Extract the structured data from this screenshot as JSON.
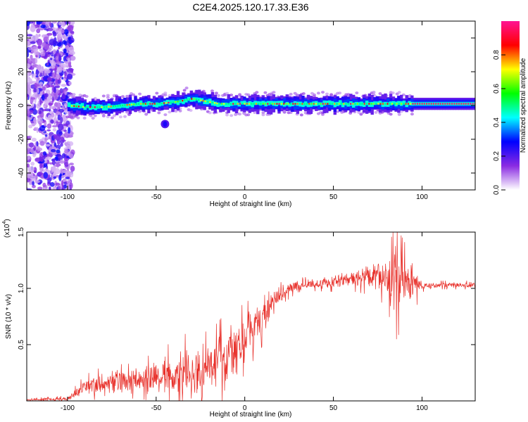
{
  "title": "C2E4.2025.120.17.33.E36",
  "chart_data": [
    {
      "type": "heatmap",
      "xlabel": "Height of straight line (km)",
      "ylabel": "Frequency (Hz)",
      "xlim": [
        -123,
        130
      ],
      "ylim": [
        -50,
        50
      ],
      "xticks": [
        -100,
        -50,
        0,
        50,
        100
      ],
      "yticks": [
        -40,
        -20,
        0,
        20,
        40
      ],
      "colorbar": {
        "label": "Normalized spectral amplitude",
        "range": [
          0.0,
          1.0
        ],
        "ticks": [
          0.0,
          0.2,
          0.4,
          0.6,
          0.8
        ],
        "colors": [
          "#ffffff",
          "#8a2be2",
          "#0000ff",
          "#00ffff",
          "#00ff00",
          "#ffff00",
          "#ff0000",
          "#ff1493"
        ]
      },
      "ridge": {
        "x": [
          -100,
          -90,
          -80,
          -70,
          -60,
          -50,
          -40,
          -30,
          -25,
          -20,
          -15,
          -10,
          0,
          10,
          20,
          40,
          60,
          80,
          95,
          130
        ],
        "freq": [
          0,
          -1,
          -1,
          0,
          1,
          1,
          2,
          4,
          3,
          2,
          1,
          1,
          1,
          1,
          1,
          1,
          1,
          1,
          1,
          1
        ]
      },
      "noise_region_x": [
        -123,
        -97
      ]
    },
    {
      "type": "line",
      "xlabel": "Height of straight line (km)",
      "ylabel": "SNR (10 * v/v)",
      "y_multiplier": "(x10",
      "y_multiplier_exp": "4",
      "xlim": [
        -123,
        130
      ],
      "ylim": [
        0,
        1.5
      ],
      "xticks": [
        -100,
        -50,
        0,
        50,
        100
      ],
      "yticks": [
        0.5,
        1.0,
        1.5
      ],
      "yticklabels": [
        "0.5",
        "1.0",
        "1.5"
      ],
      "color": "#e8302a",
      "envelope": {
        "x": [
          -123,
          -100,
          -95,
          -90,
          -80,
          -70,
          -60,
          -50,
          -40,
          -30,
          -20,
          -10,
          0,
          10,
          20,
          30,
          40,
          50,
          60,
          70,
          80,
          85,
          90,
          95,
          100,
          110,
          120,
          130
        ],
        "median": [
          0.01,
          0.02,
          0.08,
          0.13,
          0.15,
          0.17,
          0.18,
          0.22,
          0.24,
          0.27,
          0.3,
          0.38,
          0.55,
          0.75,
          0.95,
          1.03,
          1.04,
          1.06,
          1.08,
          1.1,
          1.08,
          1.05,
          1.05,
          1.05,
          1.02,
          1.03,
          1.03,
          1.03
        ],
        "spread": [
          0.01,
          0.02,
          0.05,
          0.08,
          0.12,
          0.12,
          0.12,
          0.18,
          0.22,
          0.28,
          0.24,
          0.32,
          0.24,
          0.2,
          0.08,
          0.05,
          0.05,
          0.07,
          0.08,
          0.12,
          0.18,
          0.4,
          0.28,
          0.22,
          0.04,
          0.03,
          0.03,
          0.03
        ]
      }
    }
  ]
}
